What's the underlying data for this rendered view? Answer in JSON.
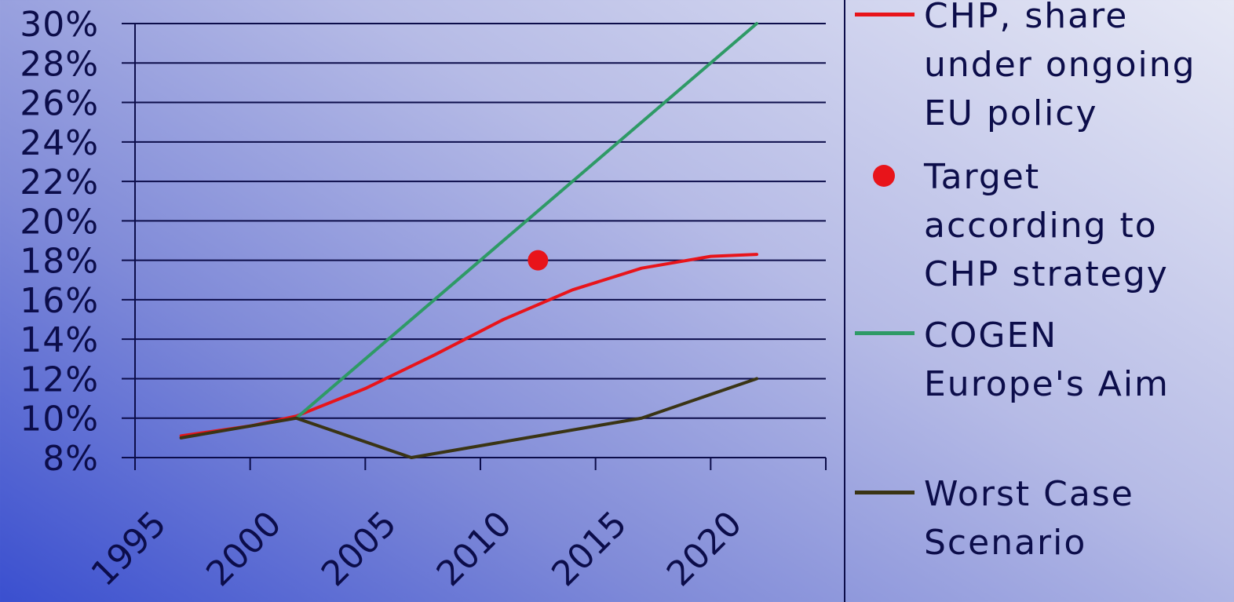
{
  "chart_data": {
    "type": "line",
    "x": [
      1997,
      2002,
      2007,
      2012,
      2017,
      2022
    ],
    "xlim": [
      1995,
      2025
    ],
    "xticks": [
      1995,
      2000,
      2005,
      2010,
      2015,
      2020
    ],
    "ylim": [
      8,
      30
    ],
    "yticks": [
      "8%",
      "10%",
      "12%",
      "14%",
      "16%",
      "18%",
      "20%",
      "22%",
      "24%",
      "26%",
      "28%",
      "30%"
    ],
    "grid": true,
    "legend_position": "right",
    "series": [
      {
        "name": "CHP, share under ongoing EU policy",
        "color": "#e8141a",
        "x": [
          1997,
          2000,
          2002,
          2005,
          2008,
          2011,
          2014,
          2017,
          2020,
          2022
        ],
        "values": [
          9.1,
          9.6,
          10.1,
          11.5,
          13.2,
          15.0,
          16.5,
          17.6,
          18.2,
          18.3
        ]
      },
      {
        "name": "COGEN Europe's Aim",
        "color": "#2e9a66",
        "x": [
          2002,
          2012,
          2022
        ],
        "values": [
          10,
          20,
          30
        ]
      },
      {
        "name": "Worst Case Scenario",
        "color": "#3a3414",
        "x": [
          1997,
          2002,
          2007,
          2012,
          2017,
          2022
        ],
        "values": [
          9,
          10,
          8,
          9,
          10,
          12
        ]
      }
    ],
    "points": [
      {
        "name": "Target according to CHP strategy",
        "color": "#e8141a",
        "x": 2012.5,
        "y": 18
      }
    ]
  },
  "legend": [
    {
      "label": "CHP, share\nunder ongoing\nEU policy",
      "marker": "line",
      "color": "#e8141a"
    },
    {
      "label": "Target\naccording to\nCHP strategy",
      "marker": "dot",
      "color": "#e8141a"
    },
    {
      "label": "COGEN\nEurope's Aim",
      "marker": "line",
      "color": "#2e9a66"
    },
    {
      "label": "Worst Case\nScenario",
      "marker": "line",
      "color": "#3a3414"
    }
  ]
}
